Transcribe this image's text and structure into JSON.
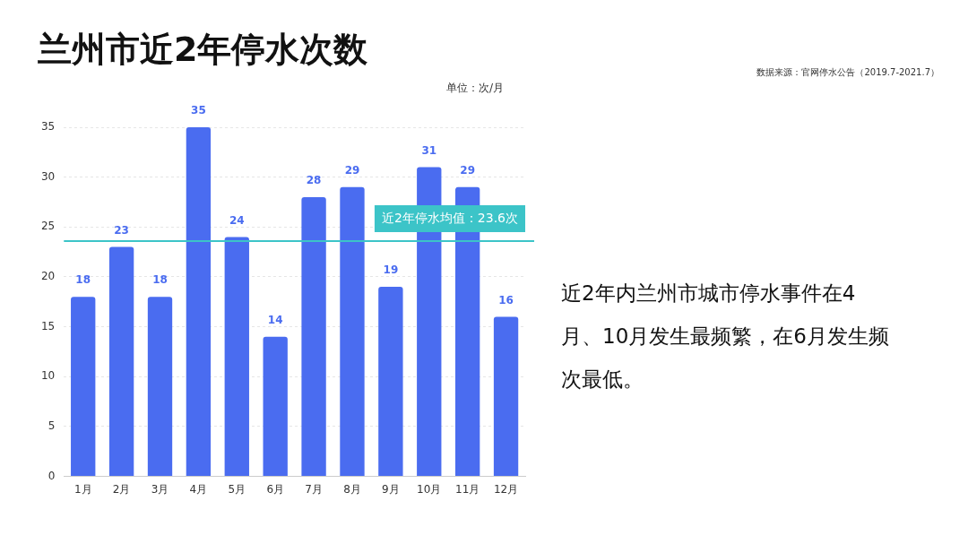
{
  "chart_data": {
    "type": "bar",
    "title": "兰州市近2年停水次数",
    "subtitle": "数据来源：官网停水公告（2019.7-2021.7）",
    "ylabel": "单位：次/月",
    "categories": [
      "1月",
      "2月",
      "3月",
      "4月",
      "5月",
      "6月",
      "7月",
      "8月",
      "9月",
      "10月",
      "11月",
      "12月"
    ],
    "values": [
      18,
      23,
      18,
      35,
      24,
      14,
      28,
      29,
      19,
      31,
      29,
      16
    ],
    "color": "#4a6cf0",
    "ylim": [
      0,
      35
    ],
    "yticks": [
      0,
      5,
      10,
      15,
      20,
      25,
      30,
      35
    ],
    "grid": "y",
    "legend": false,
    "data_labels": true,
    "ref_lines": [
      {
        "axis": "y",
        "value": 23.6,
        "label": "近2年停水均值：23.6次",
        "color": "#3cc4c8"
      }
    ],
    "annotations": [
      "近2年内兰州市城市停水事件在4月、10月发生最频繁，在6月发生频次最低。"
    ]
  }
}
